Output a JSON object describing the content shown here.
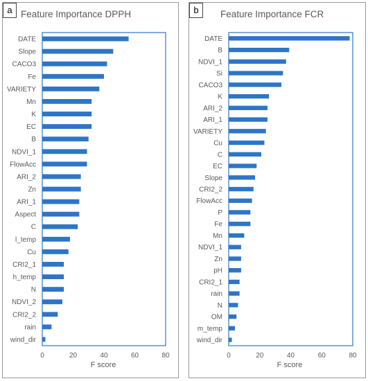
{
  "chart_data": [
    {
      "panel": "a",
      "type": "bar",
      "orientation": "horizontal",
      "title": "Feature Importance DPPH",
      "xlabel": "F score",
      "ylabel": "",
      "xlim": [
        0,
        80
      ],
      "xticks": [
        0,
        20,
        40,
        60,
        80
      ],
      "grid": false,
      "bar_color": "#2E75C6",
      "categories": [
        "DATE",
        "Slope",
        "CACO3",
        "Fe",
        "VARIETY",
        "Mn",
        "K",
        "EC",
        "B",
        "NDVI_1",
        "FlowAcc",
        "ARI_2",
        "Zn",
        "ARI_1",
        "Aspect",
        "C",
        "l_temp",
        "Cu",
        "CRI2_1",
        "h_temp",
        "N",
        "NDVI_2",
        "CRI2_2",
        "rain",
        "wind_dir"
      ],
      "values": [
        56,
        46,
        42,
        40,
        37,
        32,
        32,
        32,
        30,
        29,
        29,
        25,
        25,
        24,
        24,
        23,
        18,
        17,
        14,
        14,
        14,
        13,
        10,
        6,
        2
      ]
    },
    {
      "panel": "b",
      "type": "bar",
      "orientation": "horizontal",
      "title": "Feature Importance FCR",
      "xlabel": "F score",
      "ylabel": "",
      "xlim": [
        0,
        80
      ],
      "xticks": [
        0,
        20,
        40,
        60,
        80
      ],
      "grid": false,
      "bar_color": "#2E75C6",
      "categories": [
        "DATE",
        "B",
        "NDVI_1",
        "Si",
        "CACO3",
        "K",
        "ARI_2",
        "ARI_1",
        "VARIETY",
        "Cu",
        "C",
        "EC",
        "Slope",
        "CRI2_2",
        "FlowAcc",
        "P",
        "Fe",
        "Mn",
        "NDVI_1",
        "Zn",
        "pH",
        "CRI2_1",
        "rain",
        "N",
        "OM",
        "m_temp",
        "wind_dir"
      ],
      "values": [
        78,
        39,
        37,
        35,
        34,
        26,
        25,
        25,
        24,
        23,
        21,
        18,
        17,
        16,
        15,
        14,
        14,
        10,
        8,
        8,
        8,
        7,
        7,
        6,
        5,
        4,
        2
      ]
    }
  ]
}
